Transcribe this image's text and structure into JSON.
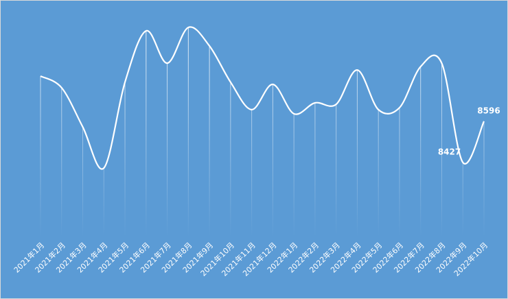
{
  "chart_data": {
    "type": "line",
    "categories": [
      "2021年1月",
      "2021年2月",
      "2021年3月",
      "2021年4月",
      "2021年5月",
      "2021年6月",
      "2021年7月",
      "2021年8月",
      "2021年9月",
      "2021年10月",
      "2021年11月",
      "2021年12月",
      "2022年1月",
      "2022年2月",
      "2022年3月",
      "2022年4月",
      "2022年5月",
      "2022年6月",
      "2022年7月",
      "2022年8月",
      "2022年9月",
      "2022年10月"
    ],
    "values": [
      8782,
      8734,
      8573,
      8404,
      8757,
      8968,
      8835,
      8982,
      8906,
      8757,
      8644,
      8748,
      8627,
      8672,
      8666,
      8807,
      8644,
      8652,
      8821,
      8835,
      8427,
      8596
    ],
    "value_labels": [
      null,
      null,
      null,
      null,
      null,
      null,
      null,
      null,
      null,
      null,
      null,
      null,
      null,
      null,
      null,
      null,
      null,
      null,
      null,
      null,
      "8427",
      "8596"
    ],
    "color": "#ffffff",
    "background": "#5b9bd5"
  }
}
